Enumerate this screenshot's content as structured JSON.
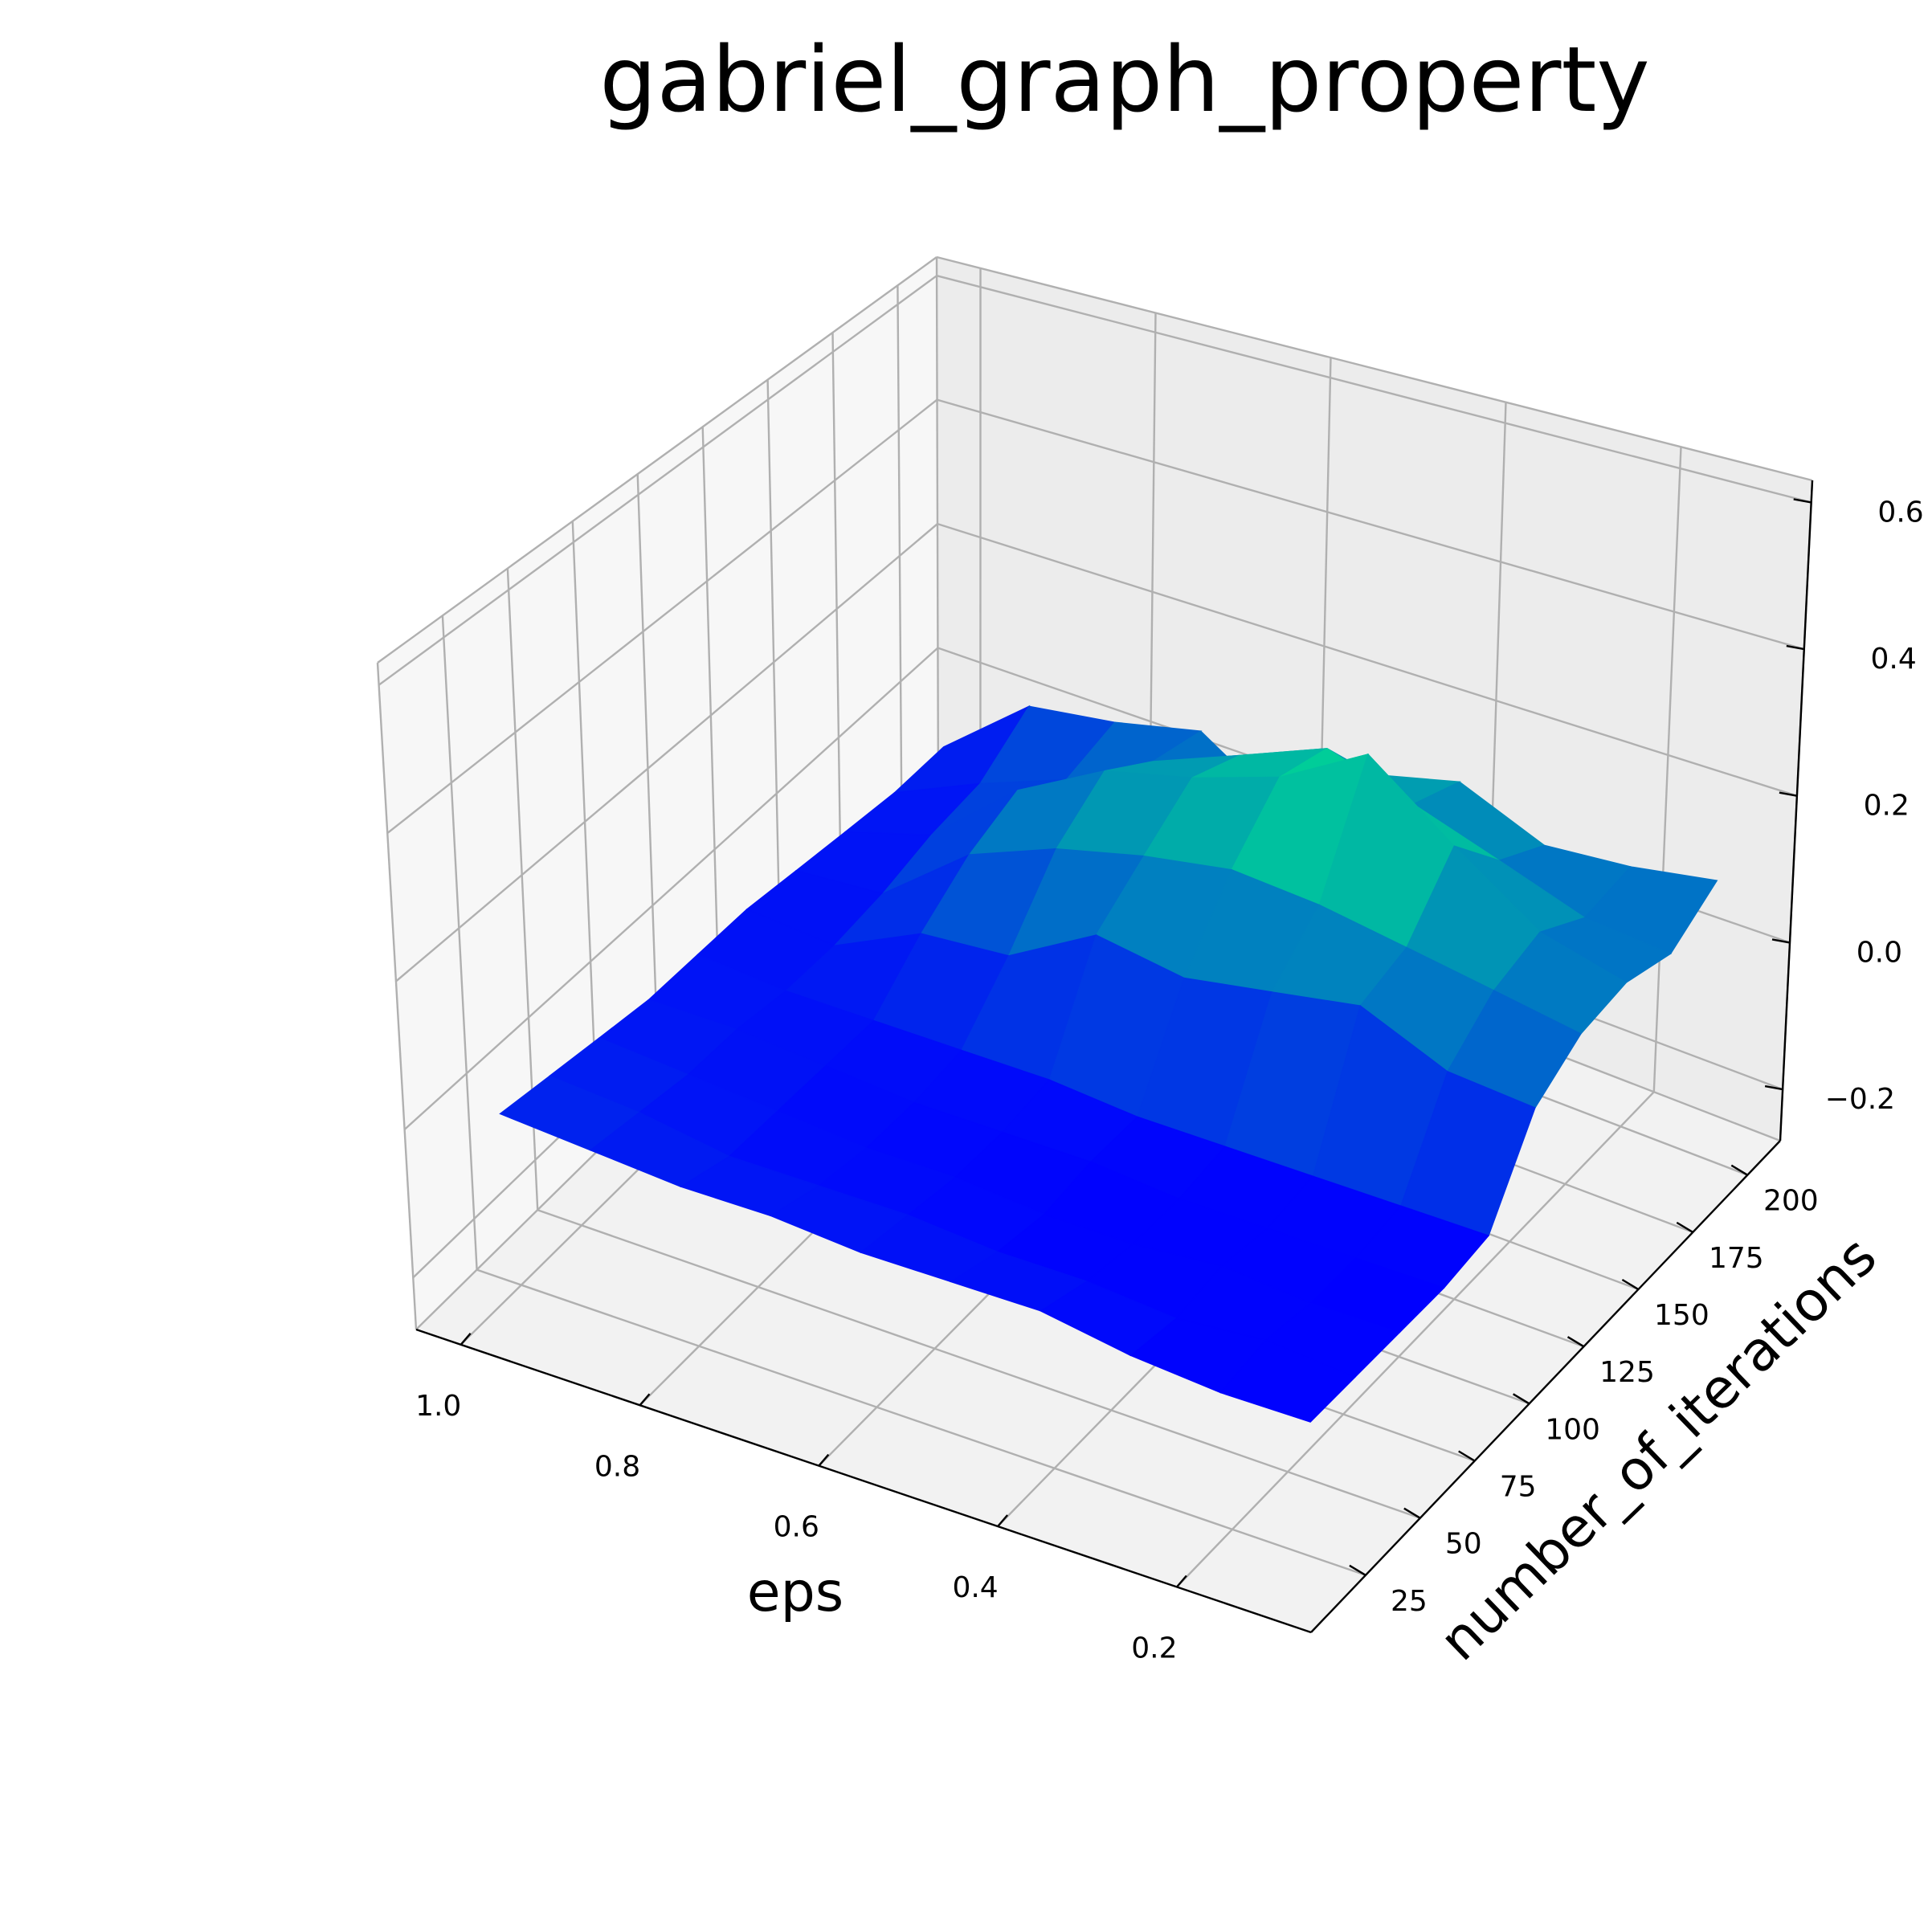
{
  "chart_data": {
    "type": "surface",
    "title": "gabriel_graph_property",
    "xlabel": "eps",
    "ylabel": "number_of_iterations",
    "zlabel": "",
    "colormap": "winter",
    "colors": {
      "low": "#0000ff",
      "high": "#00ff80"
    },
    "grid": true,
    "x_ticks": [
      1.0,
      0.8,
      0.6,
      0.4,
      0.2
    ],
    "x_tick_labels": [
      "1.0",
      "0.8",
      "0.6",
      "0.4",
      "0.2"
    ],
    "y_ticks": [
      25,
      50,
      75,
      100,
      125,
      150,
      175,
      200
    ],
    "y_tick_labels": [
      "25",
      "50",
      "75",
      "100",
      "125",
      "150",
      "175",
      "200"
    ],
    "z_ticks": [
      -0.2,
      0.0,
      0.2,
      0.4,
      0.6
    ],
    "z_tick_labels": [
      "−0.2",
      "0.0",
      "0.2",
      "0.4",
      "0.6"
    ],
    "xlim": [
      1.05,
      0.05
    ],
    "ylim": [
      0,
      215
    ],
    "zlim": [
      -0.27,
      0.63
    ],
    "eps": [
      1.0,
      0.9,
      0.8,
      0.7,
      0.6,
      0.5,
      0.4,
      0.3,
      0.2,
      0.1
    ],
    "number_of_iterations": [
      20,
      40,
      60,
      80,
      100,
      120,
      140,
      160,
      180,
      200
    ],
    "z": [
      [
        -0.02,
        -0.03,
        -0.04,
        -0.04,
        -0.05,
        -0.05,
        -0.05,
        -0.07,
        -0.08,
        -0.08
      ],
      [
        -0.03,
        -0.04,
        -0.06,
        -0.06,
        -0.06,
        -0.07,
        -0.07,
        -0.08,
        -0.07,
        -0.08
      ],
      [
        -0.04,
        -0.05,
        -0.06,
        -0.07,
        -0.07,
        -0.08,
        -0.08,
        -0.07,
        -0.08,
        -0.08
      ],
      [
        -0.05,
        -0.05,
        -0.06,
        -0.07,
        -0.07,
        -0.07,
        -0.08,
        -0.08,
        -0.08,
        -0.08
      ],
      [
        -0.05,
        -0.06,
        -0.06,
        -0.06,
        -0.06,
        -0.07,
        -0.07,
        -0.07,
        -0.07,
        -0.07
      ],
      [
        -0.05,
        -0.06,
        0.0,
        0.01,
        0.08,
        0.06,
        0.08,
        0.1,
        0.05,
        0.04
      ],
      [
        -0.06,
        -0.05,
        0.05,
        0.1,
        0.13,
        0.15,
        0.14,
        0.12,
        0.1,
        0.08
      ],
      [
        -0.07,
        -0.03,
        0.08,
        0.15,
        0.18,
        0.22,
        0.29,
        0.2,
        0.12,
        0.09
      ],
      [
        -0.08,
        -0.02,
        0.03,
        0.1,
        0.15,
        0.2,
        0.16,
        0.12,
        0.08,
        0.07
      ],
      [
        -0.08,
        0.03,
        0.05,
        0.08,
        0.0,
        0.1,
        0.13,
        0.08,
        0.09,
        0.11
      ]
    ]
  }
}
